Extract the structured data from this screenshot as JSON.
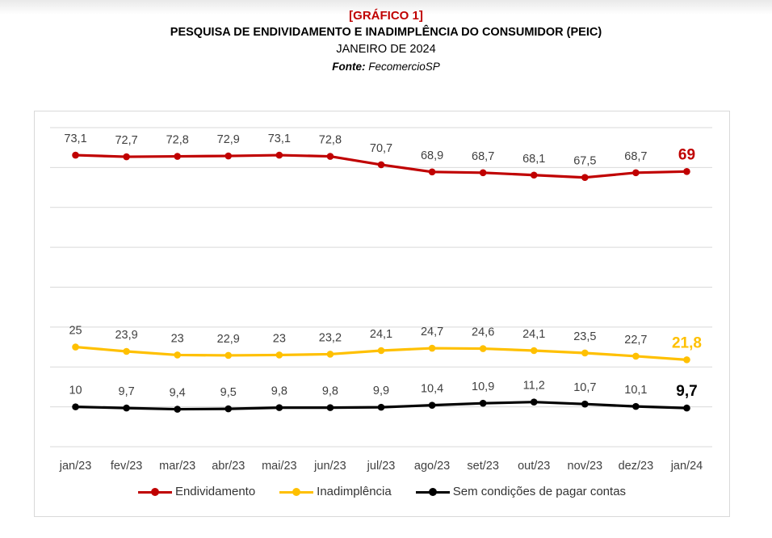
{
  "header": {
    "label": "[GRÁFICO 1]",
    "title": "PESQUISA DE ENDIVIDAMENTO E INADIMPLÊNCIA DO CONSUMIDOR (PEIC)",
    "subtitle": "JANEIRO DE 2024",
    "source_label": "Fonte:",
    "source_value": "FecomercioSP"
  },
  "chart_data": {
    "type": "line",
    "categories": [
      "jan/23",
      "fev/23",
      "mar/23",
      "abr/23",
      "mai/23",
      "jun/23",
      "jul/23",
      "ago/23",
      "set/23",
      "out/23",
      "nov/23",
      "dez/23",
      "jan/24"
    ],
    "series": [
      {
        "name": "Endividamento",
        "color": "#c00000",
        "values": [
          73.1,
          72.7,
          72.8,
          72.9,
          73.1,
          72.8,
          70.7,
          68.9,
          68.7,
          68.1,
          67.5,
          68.7,
          69
        ],
        "labels": [
          "73,1",
          "72,7",
          "72,8",
          "72,9",
          "73,1",
          "72,8",
          "70,7",
          "68,9",
          "68,7",
          "68,1",
          "67,5",
          "68,7",
          "69"
        ]
      },
      {
        "name": "Inadimplência",
        "color": "#ffc000",
        "values": [
          25,
          23.9,
          23,
          22.9,
          23,
          23.2,
          24.1,
          24.7,
          24.6,
          24.1,
          23.5,
          22.7,
          21.8
        ],
        "labels": [
          "25",
          "23,9",
          "23",
          "22,9",
          "23",
          "23,2",
          "24,1",
          "24,7",
          "24,6",
          "24,1",
          "23,5",
          "22,7",
          "21,8"
        ]
      },
      {
        "name": "Sem condições de pagar contas",
        "color": "#000000",
        "values": [
          10,
          9.7,
          9.4,
          9.5,
          9.8,
          9.8,
          9.9,
          10.4,
          10.9,
          11.2,
          10.7,
          10.1,
          9.7
        ],
        "labels": [
          "10",
          "9,7",
          "9,4",
          "9,5",
          "9,8",
          "9,8",
          "9,9",
          "10,4",
          "10,9",
          "11,2",
          "10,7",
          "10,1",
          "9,7"
        ]
      }
    ],
    "ylim": [
      0,
      80
    ],
    "grid": true,
    "legend_position": "bottom",
    "last_label_highlight": true
  }
}
